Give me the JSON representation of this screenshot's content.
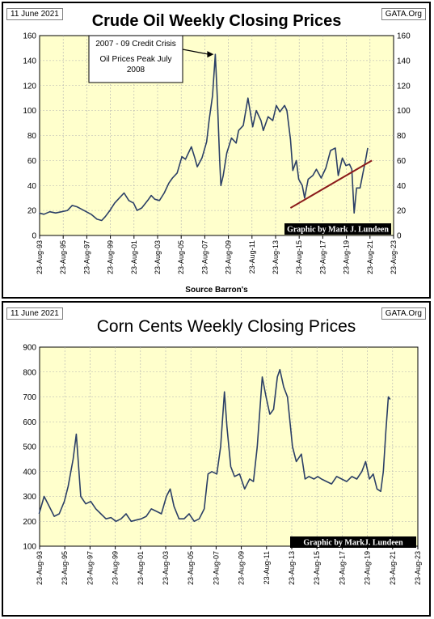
{
  "charts": [
    {
      "date_label": "11 June 2021",
      "site_label": "GATA.Org",
      "source_label": "Source Barron's",
      "credit": "Graphic by Mark J. Lundeen",
      "annotation": {
        "lines": [
          "2007 - 09 Credit Crisis",
          "Oil Prices Peak July",
          "2008"
        ]
      },
      "colors": {
        "plot_bg": "#ffffcc",
        "line": "#2b3f66",
        "trend": "#8b1a1a",
        "grid": "#b0b0b0"
      }
    },
    {
      "date_label": "11 June 2021",
      "site_label": "GATA.Org",
      "credit": "Graphic by MarkJ. Lundeen",
      "colors": {
        "plot_bg": "#ffffcc",
        "line": "#2b3f66",
        "grid": "#b0b0b0"
      }
    }
  ],
  "chart_data": [
    {
      "type": "line",
      "title": "Crude Oil Weekly Closing Prices",
      "xlabel": "Source Barron's",
      "ylim": [
        0,
        160
      ],
      "yticks": [
        0,
        20,
        40,
        60,
        80,
        100,
        120,
        140,
        160
      ],
      "xlim": [
        1993.64,
        2023.64
      ],
      "x_tick_labels": [
        "23-Aug-93",
        "23-Aug-95",
        "23-Aug-97",
        "23-Aug-99",
        "23-Aug-01",
        "23-Aug-03",
        "23-Aug-05",
        "23-Aug-07",
        "23-Aug-09",
        "23-Aug-11",
        "23-Aug-13",
        "23-Aug-15",
        "23-Aug-17",
        "23-Aug-19",
        "23-Aug-21",
        "23-Aug-23"
      ],
      "grid": true,
      "series": [
        {
          "x": [
            1993.6,
            1994.0,
            1994.5,
            1995.0,
            1995.5,
            1996.0,
            1996.4,
            1996.8,
            1997.2,
            1997.6,
            1998.0,
            1998.5,
            1998.9,
            1999.2,
            1999.6,
            2000.0,
            2000.4,
            2000.8,
            2001.2,
            2001.6,
            2001.9,
            2002.3,
            2002.8,
            2003.1,
            2003.4,
            2003.8,
            2004.2,
            2004.6,
            2004.9,
            2005.3,
            2005.7,
            2006.0,
            2006.5,
            2006.8,
            2007.0,
            2007.4,
            2007.8,
            2008.0,
            2008.3,
            2008.53,
            2008.7,
            2008.9,
            2009.0,
            2009.2,
            2009.5,
            2009.9,
            2010.3,
            2010.5,
            2010.9,
            2011.3,
            2011.7,
            2012.0,
            2012.4,
            2012.6,
            2013.0,
            2013.4,
            2013.7,
            2014.0,
            2014.4,
            2014.6,
            2014.9,
            2015.1,
            2015.4,
            2015.6,
            2015.9,
            2016.1,
            2016.4,
            2016.8,
            2017.1,
            2017.5,
            2017.9,
            2018.3,
            2018.7,
            2018.95,
            2019.3,
            2019.6,
            2019.9,
            2020.1,
            2020.3,
            2020.5,
            2020.8,
            2021.0,
            2021.3,
            2021.45
          ],
          "values": [
            18,
            17,
            19,
            18,
            19,
            20,
            24,
            23,
            21,
            19,
            17,
            13,
            12,
            15,
            20,
            26,
            30,
            34,
            28,
            26,
            20,
            22,
            28,
            32,
            29,
            28,
            34,
            42,
            46,
            50,
            63,
            61,
            71,
            62,
            55,
            62,
            75,
            92,
            112,
            145,
            110,
            60,
            40,
            48,
            66,
            78,
            74,
            84,
            88,
            110,
            87,
            100,
            92,
            84,
            95,
            92,
            104,
            99,
            104,
            100,
            77,
            52,
            60,
            45,
            40,
            30,
            45,
            48,
            53,
            46,
            54,
            68,
            70,
            48,
            62,
            56,
            57,
            53,
            18,
            38,
            38,
            48,
            62,
            70
          ]
        }
      ],
      "trendline": {
        "x": [
          2014.9,
          2021.8
        ],
        "values": [
          22,
          60
        ]
      }
    },
    {
      "type": "line",
      "title": "Corn Cents Weekly Closing Prices",
      "ylim": [
        100,
        900
      ],
      "yticks": [
        100,
        200,
        300,
        400,
        500,
        600,
        700,
        800,
        900
      ],
      "xlim": [
        1993.64,
        2023.64
      ],
      "x_tick_labels": [
        "23-Aug-93",
        "23-Aug-95",
        "23-Aug-97",
        "23-Aug-99",
        "23-Aug-01",
        "23-Aug-03",
        "23-Aug-05",
        "23-Aug-07",
        "23-Aug-09",
        "23-Aug-11",
        "23-Aug-13",
        "23-Aug-15",
        "23-Aug-17",
        "23-Aug-19",
        "23-Aug-21",
        "23-Aug-23"
      ],
      "grid": true,
      "series": [
        {
          "x": [
            1993.6,
            1994.0,
            1994.4,
            1994.8,
            1995.2,
            1995.6,
            1995.9,
            1996.3,
            1996.55,
            1996.9,
            1997.3,
            1997.7,
            1998.1,
            1998.5,
            1998.9,
            1999.3,
            1999.7,
            2000.1,
            2000.5,
            2000.9,
            2001.3,
            2001.7,
            2002.1,
            2002.5,
            2002.9,
            2003.3,
            2003.7,
            2004.0,
            2004.3,
            2004.7,
            2005.1,
            2005.5,
            2005.9,
            2006.3,
            2006.7,
            2007.0,
            2007.3,
            2007.7,
            2008.0,
            2008.3,
            2008.5,
            2008.8,
            2009.1,
            2009.5,
            2009.9,
            2010.3,
            2010.6,
            2010.9,
            2011.1,
            2011.3,
            2011.6,
            2011.9,
            2012.2,
            2012.5,
            2012.7,
            2013.0,
            2013.3,
            2013.7,
            2014.0,
            2014.4,
            2014.7,
            2015.0,
            2015.4,
            2015.7,
            2016.0,
            2016.4,
            2016.8,
            2017.2,
            2017.6,
            2018.0,
            2018.4,
            2018.8,
            2019.2,
            2019.5,
            2019.8,
            2020.1,
            2020.4,
            2020.7,
            2020.9,
            2021.1,
            2021.3,
            2021.45
          ],
          "values": [
            230,
            300,
            260,
            220,
            230,
            280,
            340,
            450,
            550,
            300,
            270,
            280,
            250,
            230,
            210,
            215,
            200,
            210,
            230,
            200,
            205,
            210,
            220,
            250,
            240,
            230,
            300,
            330,
            260,
            210,
            210,
            230,
            200,
            210,
            250,
            390,
            400,
            390,
            500,
            720,
            580,
            420,
            380,
            390,
            330,
            370,
            360,
            500,
            640,
            780,
            700,
            630,
            650,
            780,
            810,
            740,
            700,
            500,
            440,
            470,
            370,
            380,
            370,
            380,
            370,
            360,
            350,
            380,
            370,
            360,
            380,
            370,
            400,
            440,
            370,
            390,
            330,
            320,
            400,
            560,
            700,
            690
          ]
        }
      ]
    }
  ]
}
